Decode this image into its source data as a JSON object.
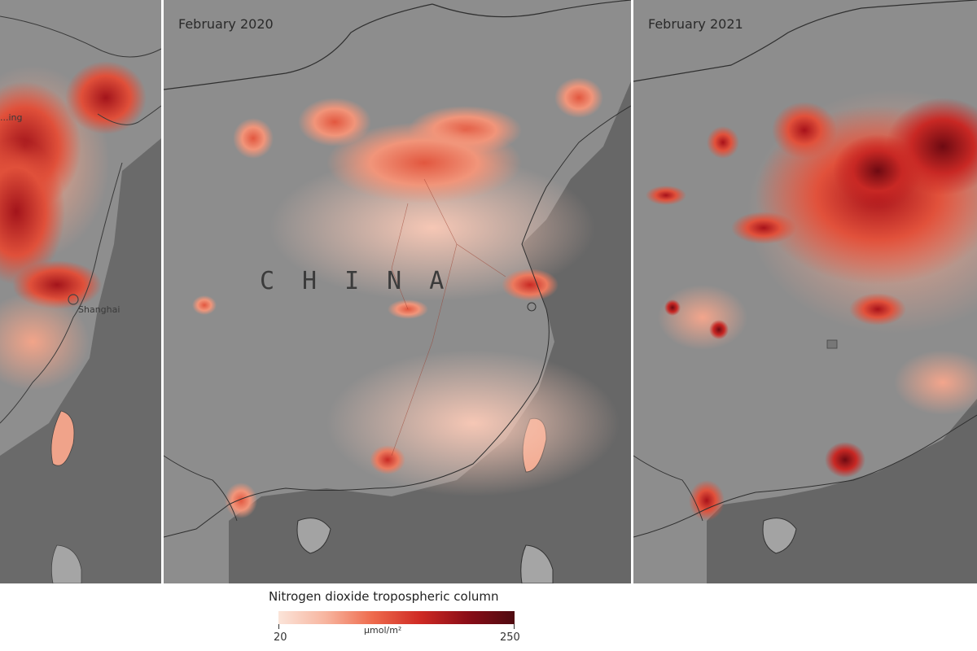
{
  "panels": [
    {
      "title": "",
      "cities": [
        "...ing",
        "Shanghai"
      ]
    },
    {
      "title": "February 2020",
      "country_label": "CHINA"
    },
    {
      "title": "February 2021"
    }
  ],
  "legend": {
    "title": "Nitrogen dioxide tropospheric column",
    "min": "20",
    "max": "250",
    "unit": "µmol/m²",
    "colors": [
      "#fbe4d9",
      "#f7b59f",
      "#ee6a4c",
      "#cf2a24",
      "#8b0d17",
      "#4e0a10"
    ]
  },
  "colors": {
    "land": "#8f8f8f",
    "sea": "#6b6b6b",
    "no2_low": "#f4c7b4",
    "no2_high": "#7a0c14"
  }
}
